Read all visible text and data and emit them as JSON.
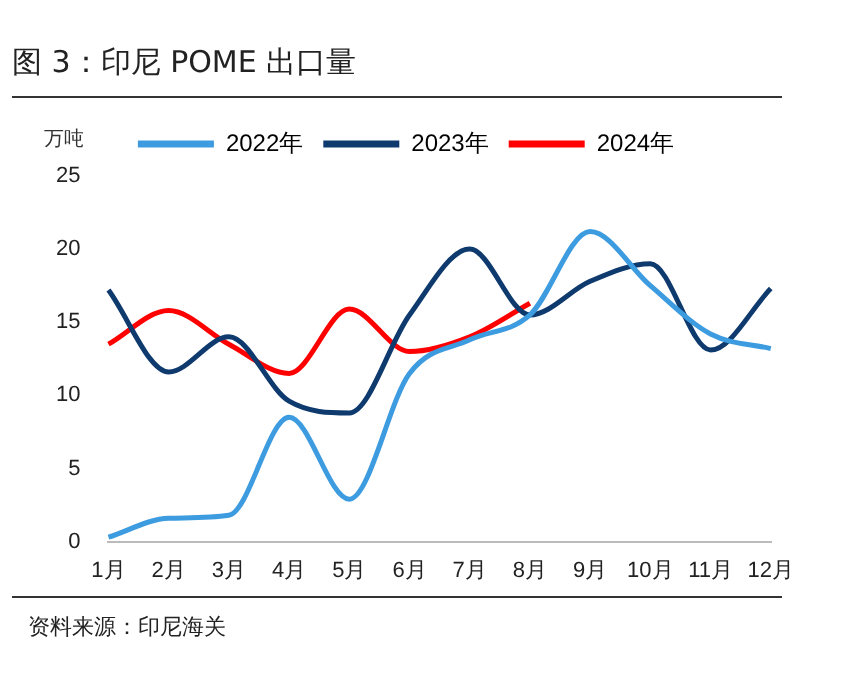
{
  "chart_data": {
    "type": "line",
    "title": "图 3：印尼 POME 出口量",
    "ylabel": "万吨",
    "annotations": [
      "资料来源：印尼海关"
    ],
    "categories": [
      "1月",
      "2月",
      "3月",
      "4月",
      "5月",
      "6月",
      "7月",
      "8月",
      "9月",
      "10月",
      "11月",
      "12月"
    ],
    "series": [
      {
        "name": "2022年",
        "color": "#3d9be0",
        "values": [
          0.3,
          1.6,
          1.8,
          8.5,
          2.9,
          11.5,
          13.8,
          15.5,
          21.2,
          17.5,
          14.2,
          13.2
        ]
      },
      {
        "name": "2023年",
        "color": "#0e3a6e",
        "values": [
          17.2,
          11.6,
          14.0,
          9.6,
          8.8,
          15.5,
          20.0,
          15.5,
          17.8,
          19.0,
          13.1,
          17.3
        ]
      },
      {
        "name": "2024年",
        "color": "#ff0000",
        "values": [
          13.5,
          15.8,
          13.5,
          11.5,
          15.9,
          13.0,
          14.0,
          16.3,
          null,
          null,
          null,
          null
        ]
      }
    ],
    "ylim": [
      0,
      25
    ],
    "yticks": [
      0,
      5,
      10,
      15,
      20,
      25
    ],
    "grid": false,
    "legend": "top",
    "marker": "none",
    "line_style": "solid"
  }
}
